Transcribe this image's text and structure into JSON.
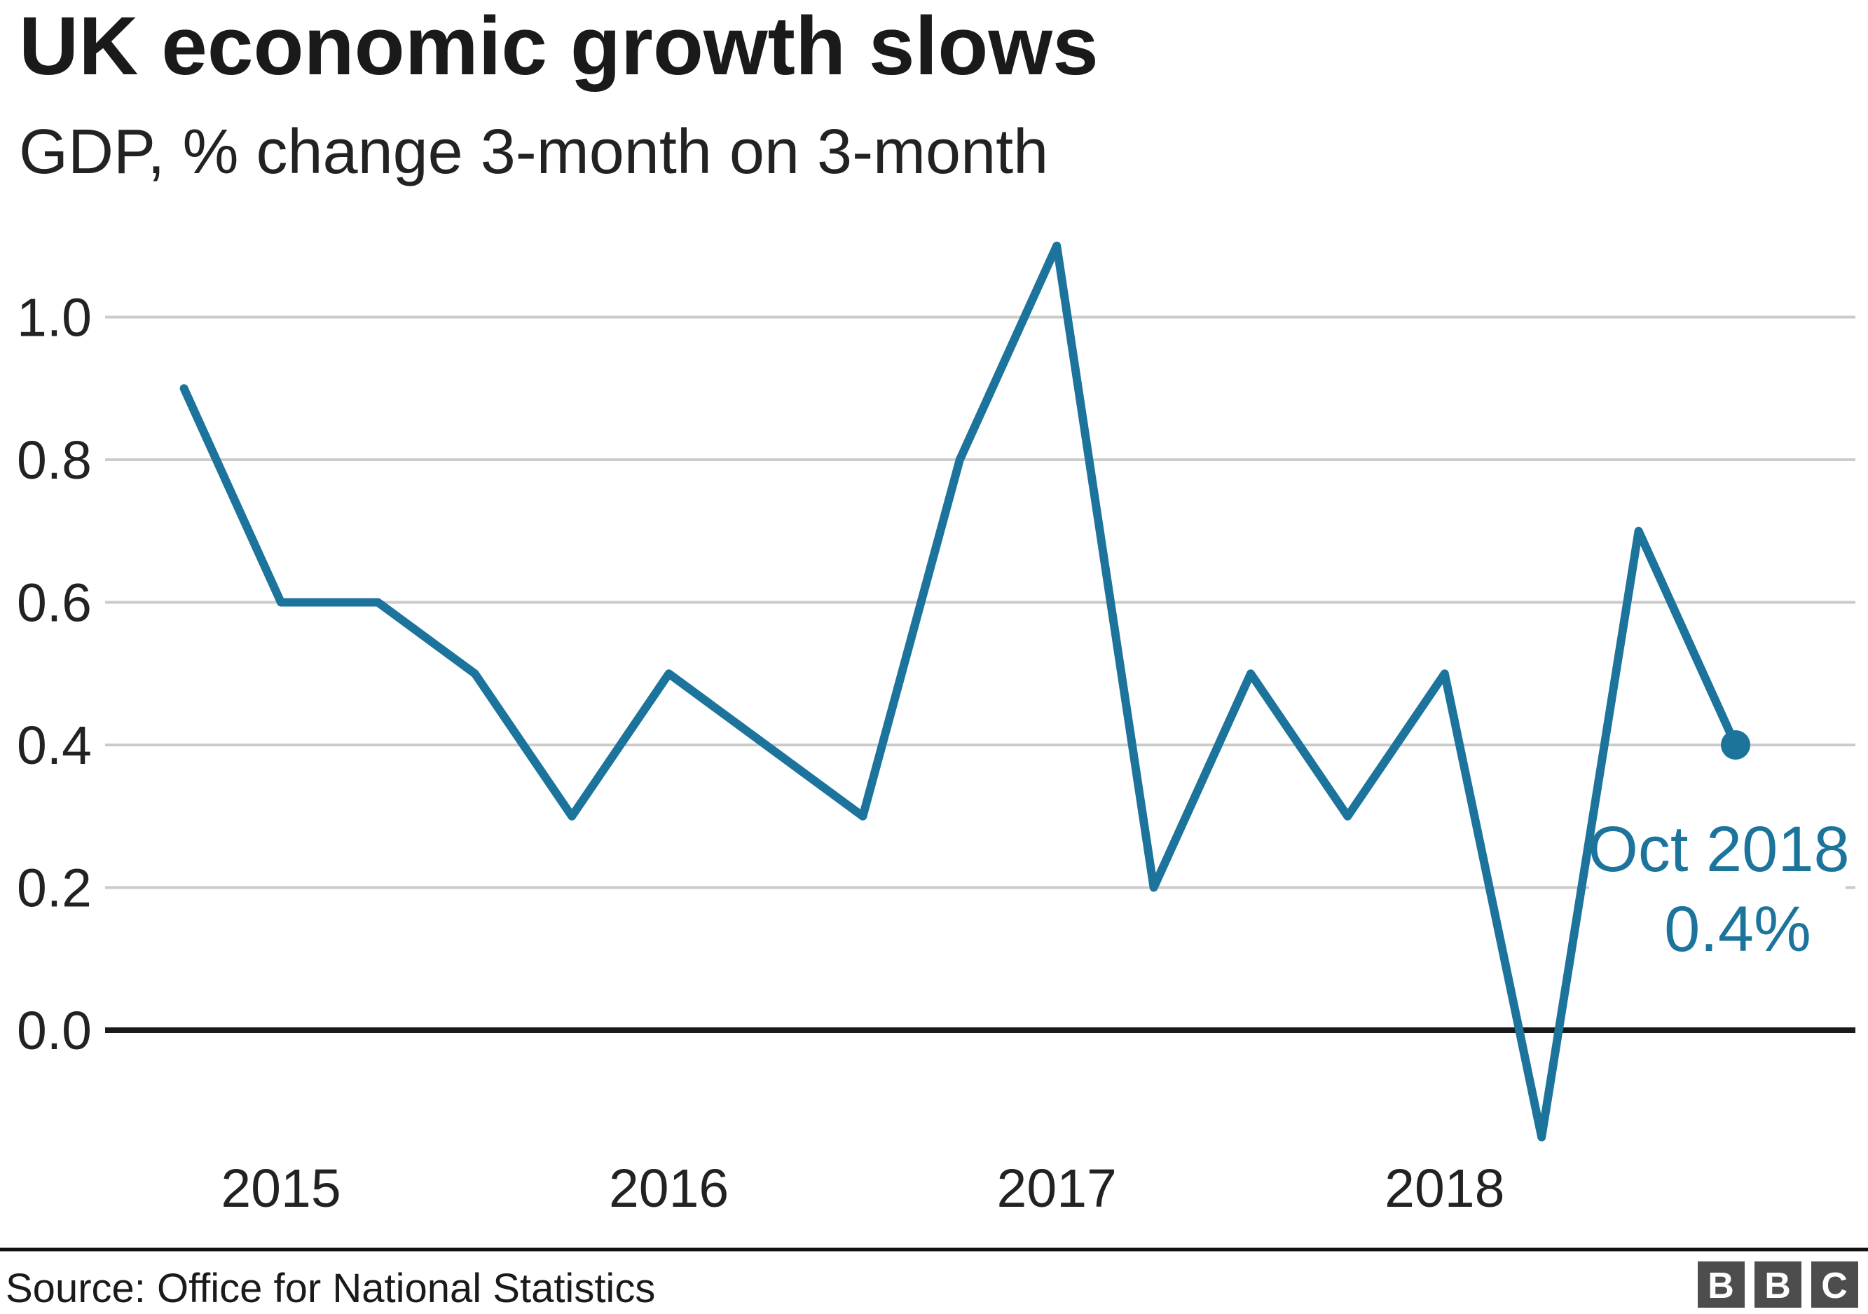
{
  "header": {
    "title": "UK economic growth slows",
    "subtitle": "GDP, % change 3-month on 3-month"
  },
  "chart_data": {
    "type": "line",
    "title": "UK economic growth slows",
    "subtitle": "GDP, % change 3-month on 3-month",
    "x": [
      "Oct 2014",
      "Jan 2015",
      "Apr 2015",
      "Jul 2015",
      "Oct 2015",
      "Jan 2016",
      "Apr 2016",
      "Jul 2016",
      "Oct 2016",
      "Jan 2017",
      "Apr 2017",
      "Jul 2017",
      "Oct 2017",
      "Jan 2018",
      "Apr 2018",
      "Jul 2018",
      "Oct 2018"
    ],
    "values": [
      0.9,
      0.6,
      0.6,
      0.5,
      0.3,
      0.5,
      0.4,
      0.3,
      0.8,
      1.1,
      0.2,
      0.5,
      0.3,
      0.5,
      -0.15,
      0.7,
      0.4
    ],
    "x_axis_tick_labels": [
      "2015",
      "2016",
      "2017",
      "2018"
    ],
    "x_axis_tick_indices": [
      1,
      5,
      9,
      13
    ],
    "y_axis_ticks": [
      "0.0",
      "0.2",
      "0.4",
      "0.6",
      "0.8",
      "1.0"
    ],
    "ylim": [
      -0.2,
      1.15
    ],
    "grid": "horizontal gridlines every 0.2, emphasized black baseline at 0.0",
    "legend": "none",
    "line_color": "#1C749D",
    "gridline_color": "#CBCBCB",
    "zero_line_color": "#1A1A1A",
    "annotation": {
      "line1": "Oct 2018",
      "line2": "0.4%",
      "point_x": "Oct 2018",
      "point_y": 0.4
    },
    "end_point_marker": true
  },
  "footer": {
    "source": "Source: Office for National Statistics",
    "divider_color": "#111111",
    "logo": {
      "letters": [
        "B",
        "B",
        "C"
      ],
      "square_color": "#4D4D4D",
      "letter_color": "#FFFFFF"
    }
  }
}
